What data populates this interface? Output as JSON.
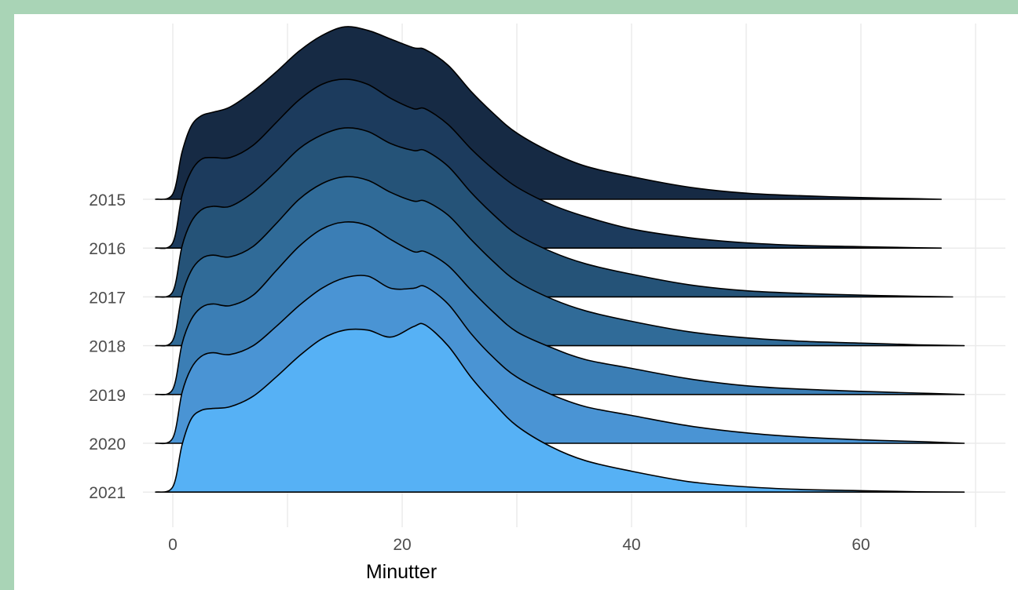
{
  "chart_data": {
    "type": "ridgeline",
    "xlabel": "Minutter",
    "ylabel": "",
    "x_ticks": [
      0,
      20,
      40,
      60
    ],
    "xlim": [
      -3,
      73
    ],
    "grid": true,
    "categories": [
      "2015",
      "2016",
      "2017",
      "2018",
      "2019",
      "2020",
      "2021"
    ],
    "colors": [
      "#162a44",
      "#1c3b5d",
      "#255378",
      "#306b98",
      "#3b7eb5",
      "#4a94d4",
      "#56b1f5"
    ],
    "x": [
      -1.5,
      0,
      0.8,
      1.6,
      2.5,
      3.5,
      5,
      7,
      9,
      11,
      13,
      15,
      17,
      19,
      21,
      22,
      24,
      26,
      28,
      30,
      33,
      36,
      40,
      45,
      50,
      55,
      60,
      65,
      69
    ],
    "series": [
      {
        "name": "2015",
        "x_max": 67,
        "density": [
          0,
          0.03,
          0.27,
          0.42,
          0.48,
          0.5,
          0.53,
          0.62,
          0.73,
          0.85,
          0.94,
          0.99,
          0.97,
          0.92,
          0.87,
          0.86,
          0.77,
          0.62,
          0.49,
          0.38,
          0.27,
          0.19,
          0.13,
          0.07,
          0.035,
          0.02,
          0.01,
          0.003,
          0.0
        ]
      },
      {
        "name": "2016",
        "x_max": 67,
        "density": [
          0,
          0.03,
          0.3,
          0.44,
          0.51,
          0.52,
          0.52,
          0.59,
          0.72,
          0.85,
          0.94,
          0.97,
          0.94,
          0.86,
          0.8,
          0.8,
          0.71,
          0.57,
          0.45,
          0.35,
          0.25,
          0.18,
          0.11,
          0.06,
          0.03,
          0.015,
          0.008,
          0.002,
          0.0
        ]
      },
      {
        "name": "2017",
        "x_max": 68,
        "density": [
          0,
          0.03,
          0.29,
          0.43,
          0.5,
          0.52,
          0.52,
          0.6,
          0.72,
          0.85,
          0.93,
          0.97,
          0.95,
          0.88,
          0.84,
          0.84,
          0.75,
          0.6,
          0.47,
          0.36,
          0.26,
          0.19,
          0.13,
          0.07,
          0.035,
          0.02,
          0.01,
          0.003,
          0.0
        ]
      },
      {
        "name": "2018",
        "x_max": 69,
        "density": [
          0,
          0.03,
          0.29,
          0.43,
          0.5,
          0.52,
          0.51,
          0.57,
          0.7,
          0.84,
          0.93,
          0.97,
          0.95,
          0.88,
          0.83,
          0.83,
          0.75,
          0.61,
          0.48,
          0.37,
          0.27,
          0.2,
          0.14,
          0.08,
          0.045,
          0.025,
          0.015,
          0.005,
          0.0
        ]
      },
      {
        "name": "2019",
        "x_max": 69,
        "density": [
          0,
          0.03,
          0.29,
          0.43,
          0.5,
          0.52,
          0.51,
          0.57,
          0.71,
          0.85,
          0.95,
          0.99,
          0.97,
          0.89,
          0.82,
          0.82,
          0.74,
          0.6,
          0.47,
          0.36,
          0.27,
          0.2,
          0.15,
          0.09,
          0.05,
          0.03,
          0.018,
          0.008,
          0.0
        ]
      },
      {
        "name": "2020",
        "x_max": 70,
        "density": [
          0,
          0.03,
          0.29,
          0.43,
          0.5,
          0.52,
          0.51,
          0.56,
          0.67,
          0.79,
          0.89,
          0.95,
          0.96,
          0.89,
          0.89,
          0.9,
          0.8,
          0.63,
          0.49,
          0.38,
          0.28,
          0.21,
          0.16,
          0.1,
          0.06,
          0.035,
          0.02,
          0.01,
          0.0
        ]
      },
      {
        "name": "2021",
        "x_max": 69,
        "density": [
          0,
          0.03,
          0.27,
          0.42,
          0.47,
          0.48,
          0.49,
          0.55,
          0.66,
          0.78,
          0.88,
          0.93,
          0.93,
          0.89,
          0.95,
          0.96,
          0.84,
          0.66,
          0.51,
          0.38,
          0.26,
          0.18,
          0.12,
          0.06,
          0.03,
          0.015,
          0.008,
          0.002,
          0.0
        ]
      }
    ]
  }
}
